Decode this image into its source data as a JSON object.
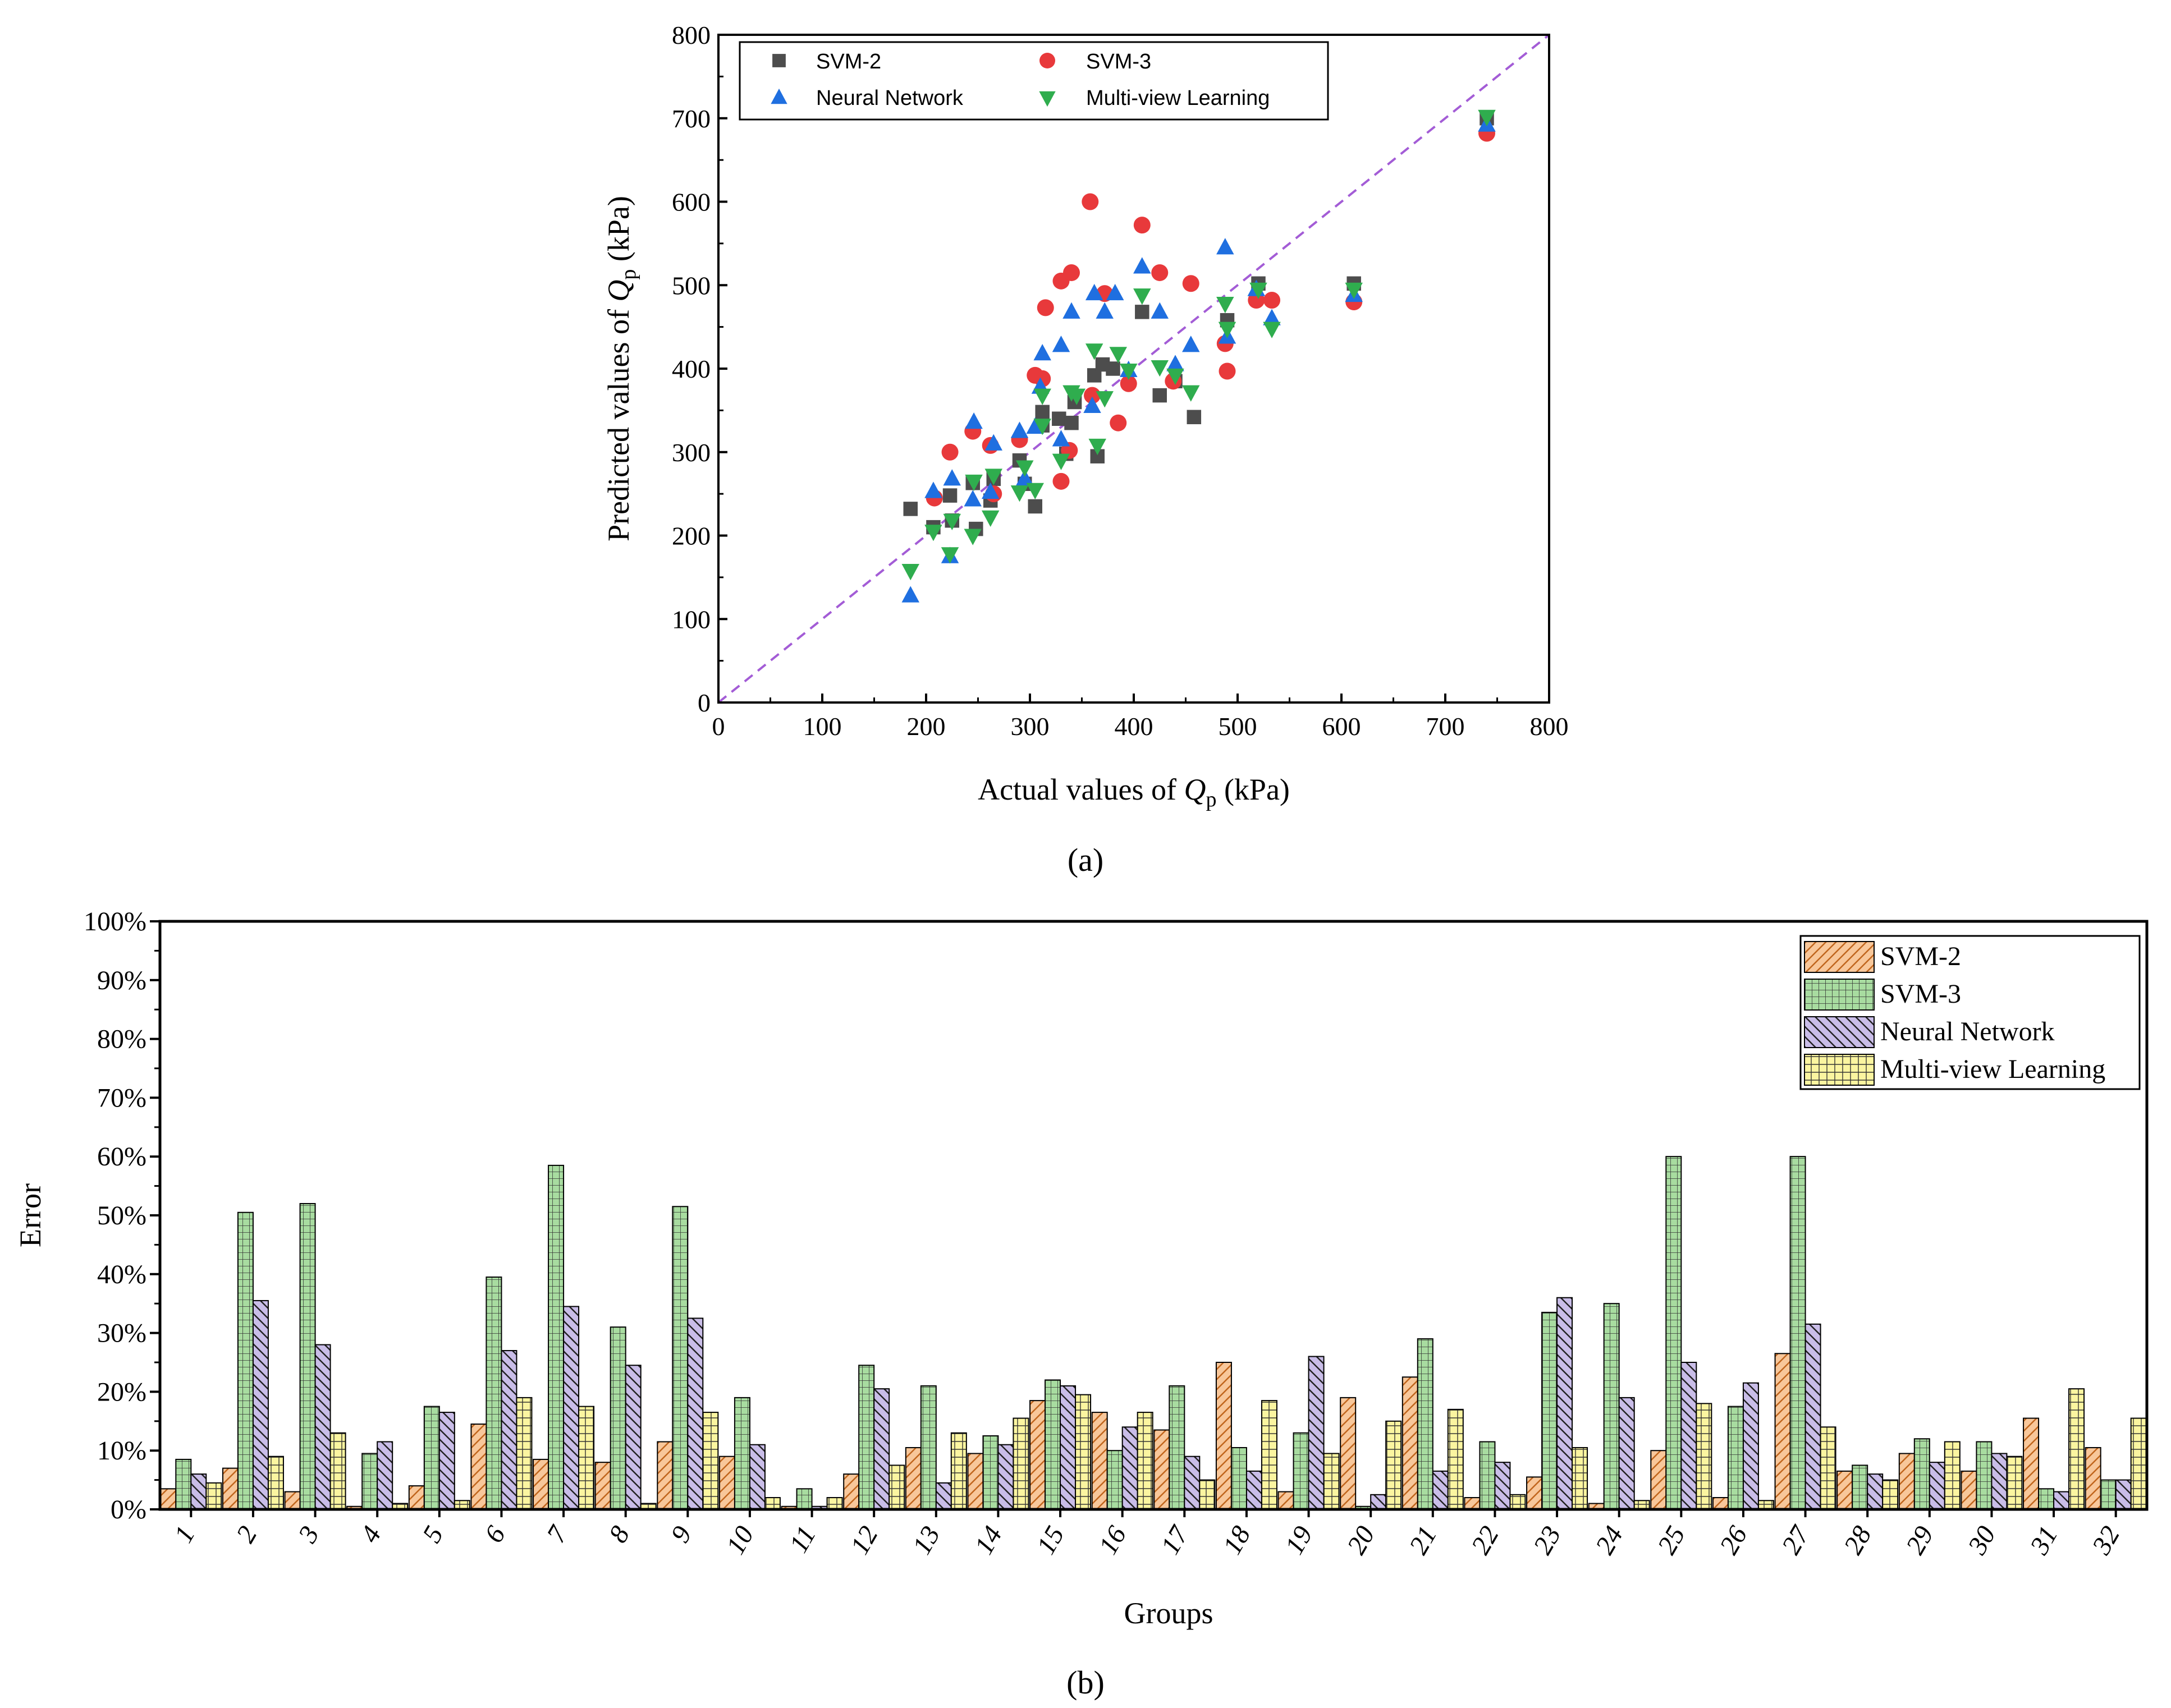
{
  "colors": {
    "svm2": "#4d4d4d",
    "svm3": "#e8393b",
    "nn": "#1f6fe0",
    "mvl": "#2fad4e",
    "diag": "#a35cd6",
    "bar_svm2": "#f8c79a",
    "bar_svm3": "#a8dca0",
    "bar_nn": "#c9bde8",
    "bar_mvl": "#fbf5a0"
  },
  "panel_a_caption": "(a)",
  "panel_b_caption": "(b)",
  "chart_data": [
    {
      "type": "scatter",
      "title": "",
      "xlabel": "Actual values of Qp (kPa)",
      "xlabel_prefix": "Actual values of ",
      "ylabel": "Predicted values of Qp (kPa)",
      "ylabel_prefix": "Predicted values of ",
      "var_main": "Q",
      "var_sub": "p",
      "unit": " (kPa)",
      "xlim": [
        0,
        800
      ],
      "ylim": [
        0,
        800
      ],
      "xticks": [
        0,
        100,
        200,
        300,
        400,
        500,
        600,
        700,
        800
      ],
      "yticks": [
        0,
        100,
        200,
        300,
        400,
        500,
        600,
        700,
        800
      ],
      "reference_line": "y = x (dashed)",
      "legend_position": "top-left",
      "series": [
        {
          "name": "SVM-2",
          "marker": "square",
          "points": [
            [
              185,
              232
            ],
            [
              207,
              210
            ],
            [
              223,
              248
            ],
            [
              225,
              218
            ],
            [
              245,
              263
            ],
            [
              248,
              208
            ],
            [
              262,
              242
            ],
            [
              265,
              268
            ],
            [
              290,
              290
            ],
            [
              295,
              262
            ],
            [
              305,
              235
            ],
            [
              312,
              332
            ],
            [
              312,
              348
            ],
            [
              328,
              340
            ],
            [
              335,
              298
            ],
            [
              340,
              335
            ],
            [
              343,
              360
            ],
            [
              362,
              392
            ],
            [
              365,
              295
            ],
            [
              370,
              405
            ],
            [
              380,
              400
            ],
            [
              408,
              468
            ],
            [
              425,
              368
            ],
            [
              440,
              385
            ],
            [
              458,
              342
            ],
            [
              490,
              458
            ],
            [
              520,
              502
            ],
            [
              612,
              502
            ],
            [
              740,
              700
            ]
          ]
        },
        {
          "name": "SVM-3",
          "marker": "circle",
          "points": [
            [
              208,
              245
            ],
            [
              223,
              300
            ],
            [
              245,
              325
            ],
            [
              262,
              308
            ],
            [
              265,
              250
            ],
            [
              290,
              315
            ],
            [
              305,
              392
            ],
            [
              312,
              388
            ],
            [
              315,
              473
            ],
            [
              330,
              265
            ],
            [
              330,
              505
            ],
            [
              338,
              302
            ],
            [
              340,
              515
            ],
            [
              358,
              600
            ],
            [
              360,
              368
            ],
            [
              372,
              490
            ],
            [
              385,
              335
            ],
            [
              395,
              382
            ],
            [
              408,
              572
            ],
            [
              425,
              515
            ],
            [
              438,
              385
            ],
            [
              455,
              502
            ],
            [
              488,
              430
            ],
            [
              490,
              397
            ],
            [
              518,
              482
            ],
            [
              533,
              482
            ],
            [
              612,
              480
            ],
            [
              740,
              682
            ]
          ]
        },
        {
          "name": "Neural Network",
          "marker": "triangle-up",
          "points": [
            [
              185,
              128
            ],
            [
              207,
              253
            ],
            [
              223,
              175
            ],
            [
              225,
              268
            ],
            [
              245,
              243
            ],
            [
              246,
              336
            ],
            [
              262,
              252
            ],
            [
              265,
              310
            ],
            [
              290,
              325
            ],
            [
              295,
              268
            ],
            [
              305,
              330
            ],
            [
              310,
              378
            ],
            [
              312,
              418
            ],
            [
              330,
              428
            ],
            [
              330,
              315
            ],
            [
              340,
              468
            ],
            [
              360,
              355
            ],
            [
              362,
              490
            ],
            [
              372,
              468
            ],
            [
              382,
              490
            ],
            [
              395,
              398
            ],
            [
              408,
              522
            ],
            [
              425,
              468
            ],
            [
              440,
              405
            ],
            [
              455,
              428
            ],
            [
              488,
              545
            ],
            [
              490,
              438
            ],
            [
              518,
              495
            ],
            [
              533,
              460
            ],
            [
              612,
              488
            ],
            [
              740,
              692
            ]
          ]
        },
        {
          "name": "Multi-view Learning",
          "marker": "triangle-down",
          "points": [
            [
              185,
              158
            ],
            [
              207,
              205
            ],
            [
              223,
              178
            ],
            [
              225,
              218
            ],
            [
              245,
              200
            ],
            [
              246,
              265
            ],
            [
              262,
              222
            ],
            [
              265,
              272
            ],
            [
              290,
              252
            ],
            [
              295,
              282
            ],
            [
              305,
              255
            ],
            [
              312,
              332
            ],
            [
              312,
              368
            ],
            [
              330,
              290
            ],
            [
              340,
              372
            ],
            [
              345,
              368
            ],
            [
              362,
              422
            ],
            [
              365,
              308
            ],
            [
              372,
              365
            ],
            [
              385,
              418
            ],
            [
              395,
              398
            ],
            [
              408,
              488
            ],
            [
              425,
              402
            ],
            [
              440,
              392
            ],
            [
              455,
              372
            ],
            [
              488,
              478
            ],
            [
              490,
              448
            ],
            [
              520,
              495
            ],
            [
              533,
              448
            ],
            [
              612,
              495
            ],
            [
              740,
              702
            ]
          ]
        }
      ]
    },
    {
      "type": "bar",
      "title": "",
      "xlabel": "Groups",
      "ylabel": "Error",
      "ylim": [
        0,
        100
      ],
      "yticks": [
        "0%",
        "10%",
        "20%",
        "30%",
        "40%",
        "50%",
        "60%",
        "70%",
        "80%",
        "90%",
        "100%"
      ],
      "legend_position": "top-right",
      "categories": [
        "1",
        "2",
        "3",
        "4",
        "5",
        "6",
        "7",
        "8",
        "9",
        "10",
        "11",
        "12",
        "13",
        "14",
        "15",
        "16",
        "17",
        "18",
        "19",
        "20",
        "21",
        "22",
        "23",
        "24",
        "25",
        "26",
        "27",
        "28",
        "29",
        "30",
        "31",
        "32"
      ],
      "series": [
        {
          "name": "SVM-2",
          "pattern": "diagonal hatch",
          "values": [
            3.5,
            7,
            3,
            0.5,
            4,
            14.5,
            8.5,
            8,
            11.5,
            9,
            0.5,
            6,
            10.5,
            9.5,
            18.5,
            16.5,
            13.5,
            25,
            3,
            19,
            22.5,
            2,
            5.5,
            1,
            10,
            2,
            26.5,
            6.5,
            9.5,
            6.5,
            15.5,
            10.5
          ]
        },
        {
          "name": "SVM-3",
          "pattern": "grid hatch",
          "values": [
            8.5,
            50.5,
            52,
            9.5,
            17.5,
            39.5,
            58.5,
            31,
            51.5,
            19,
            3.5,
            24.5,
            21,
            12.5,
            22,
            10,
            21,
            10.5,
            13,
            0.5,
            29,
            11.5,
            33.5,
            35,
            60,
            17.5,
            60,
            7.5,
            12,
            11.5,
            3.5,
            5
          ]
        },
        {
          "name": "Neural Network",
          "pattern": "back-diagonal hatch",
          "values": [
            6,
            35.5,
            28,
            11.5,
            16.5,
            27,
            34.5,
            24.5,
            32.5,
            11,
            0.5,
            20.5,
            4.5,
            11,
            21,
            14,
            9,
            6.5,
            26,
            2.5,
            6.5,
            8,
            36,
            19,
            25,
            21.5,
            31.5,
            6,
            8,
            9.5,
            3,
            5
          ]
        },
        {
          "name": "Multi-view Learning",
          "pattern": "cross hatch",
          "values": [
            4.5,
            9,
            13,
            1,
            1.5,
            19,
            17.5,
            1,
            16.5,
            2,
            2,
            7.5,
            13,
            15.5,
            19.5,
            16.5,
            5,
            18.5,
            9.5,
            15,
            17,
            2.5,
            10.5,
            1.5,
            18,
            1.5,
            14,
            5,
            11.5,
            9,
            20.5,
            15.5
          ]
        }
      ]
    }
  ]
}
